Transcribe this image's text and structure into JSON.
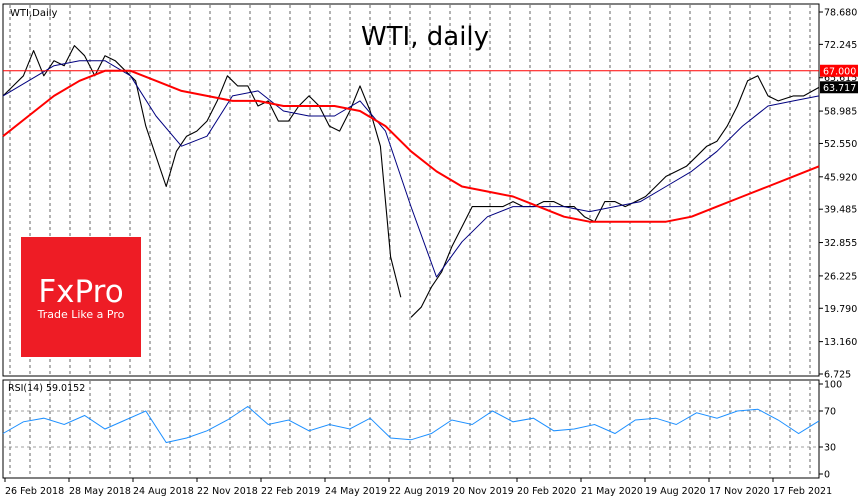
{
  "chart_data": [
    {
      "type": "line",
      "symbol_label": "WTI,Daily",
      "title": "WTI, daily",
      "y_ticks": [
        6.725,
        13.16,
        19.79,
        26.225,
        32.855,
        39.485,
        45.92,
        52.55,
        58.985,
        65.615,
        72.245,
        78.68
      ],
      "y_tick_labels": [
        "6.725",
        "13.160",
        "19.790",
        "26.225",
        "32.855",
        "39.485",
        "45.920",
        "52.550",
        "58.985",
        "65.615",
        "72.245",
        "78.680"
      ],
      "ylim": [
        6.725,
        78.68
      ],
      "x_tick_labels": [
        "26 Feb 2018",
        "28 May 2018",
        "24 Aug 2018",
        "22 Nov 2018",
        "22 Feb 2019",
        "24 May 2019",
        "22 Aug 2019",
        "20 Nov 2019",
        "20 Feb 2020",
        "21 May 2020",
        "19 Aug 2020",
        "17 Nov 2020",
        "17 Feb 2021"
      ],
      "grid": true,
      "price_level": {
        "value": 67.0,
        "label": "67.000",
        "color": "#ff0000"
      },
      "last_price": {
        "value": 63.717,
        "label": "63.717",
        "color": "#000000"
      },
      "series": [
        {
          "kind": "price",
          "color": "#000000",
          "x": [
            0,
            4,
            8,
            12,
            16,
            20,
            24,
            28,
            32,
            36,
            40,
            44,
            48,
            52,
            56,
            60,
            64,
            68,
            72,
            76,
            80,
            84,
            88,
            92,
            96,
            100,
            104,
            108,
            112,
            116,
            120,
            124,
            128,
            132,
            136,
            140,
            144,
            148,
            152,
            156
          ],
          "values": [
            62,
            64,
            66,
            71,
            66,
            69,
            68,
            72,
            70,
            66,
            70,
            69,
            67,
            65,
            56,
            50,
            44,
            51,
            54,
            55,
            57,
            61,
            66,
            64,
            64,
            60,
            61,
            57,
            57,
            60,
            62,
            60,
            56,
            55,
            59,
            64,
            59,
            52,
            30,
            22
          ]
        },
        {
          "kind": "price",
          "color": "#000000",
          "x": [
            160,
            164,
            168,
            172,
            176,
            180,
            184,
            188,
            192,
            196,
            200,
            204,
            208,
            212,
            216,
            220,
            224,
            228,
            232,
            236,
            240,
            244,
            248,
            252,
            256,
            260,
            264,
            268,
            272,
            276,
            280,
            284,
            288,
            292,
            296,
            300,
            304,
            310,
            314,
            320
          ],
          "values": [
            18,
            20,
            24,
            27,
            32,
            36,
            40,
            40,
            40,
            40,
            41,
            40,
            40,
            41,
            41,
            40,
            40,
            38,
            37,
            41,
            41,
            40,
            41,
            42,
            44,
            46,
            47,
            48,
            50,
            52,
            53,
            56,
            60,
            65,
            66,
            62,
            61,
            62,
            62,
            63.7
          ]
        },
        {
          "kind": "ma-fast",
          "color": "#00007f",
          "x": [
            0,
            10,
            20,
            30,
            40,
            50,
            60,
            70,
            80,
            90,
            100,
            110,
            120,
            130,
            140,
            150,
            160,
            170,
            180,
            190,
            200,
            210,
            220,
            230,
            240,
            250,
            260,
            270,
            280,
            290,
            300,
            310,
            320
          ],
          "values": [
            62,
            65,
            68,
            69,
            69,
            66,
            58,
            52,
            54,
            62,
            63,
            59,
            58,
            58,
            61,
            55,
            40,
            26,
            33,
            38,
            40,
            40,
            40,
            39,
            40,
            41,
            44,
            47,
            51,
            56,
            60,
            61,
            62
          ]
        },
        {
          "kind": "ma-slow",
          "color": "#ff0000",
          "x": [
            0,
            10,
            20,
            30,
            40,
            50,
            60,
            70,
            80,
            90,
            100,
            110,
            120,
            130,
            140,
            150,
            160,
            170,
            180,
            190,
            200,
            210,
            220,
            230,
            240,
            250,
            260,
            270,
            280,
            290,
            300,
            310,
            320
          ],
          "values": [
            54,
            58,
            62,
            65,
            67,
            67,
            65,
            63,
            62,
            61,
            61,
            60,
            60,
            60,
            59,
            56,
            51,
            47,
            44,
            43,
            42,
            40,
            38,
            37,
            37,
            37,
            37,
            38,
            40,
            42,
            44,
            46,
            48
          ]
        }
      ]
    },
    {
      "type": "line",
      "label": "RSI(14) 59.0152",
      "ylim": [
        0,
        100
      ],
      "y_ticks": [
        0,
        30,
        70,
        100
      ],
      "y_tick_labels": [
        "0",
        "30",
        "70",
        "100"
      ],
      "levels": [
        30,
        70
      ],
      "series": [
        {
          "color": "#1e90ff",
          "x": [
            0,
            8,
            16,
            24,
            32,
            40,
            48,
            56,
            64,
            72,
            80,
            88,
            96,
            104,
            112,
            120,
            128,
            136,
            144,
            152,
            160,
            168,
            176,
            184,
            192,
            200,
            208,
            216,
            224,
            232,
            240,
            248,
            256,
            264,
            272,
            280,
            288,
            296,
            304,
            312,
            320
          ],
          "values": [
            45,
            58,
            62,
            55,
            65,
            50,
            60,
            70,
            35,
            40,
            48,
            60,
            75,
            55,
            60,
            48,
            55,
            50,
            62,
            40,
            38,
            45,
            60,
            55,
            70,
            58,
            62,
            48,
            50,
            55,
            45,
            60,
            62,
            55,
            68,
            62,
            70,
            72,
            60,
            45,
            59
          ]
        }
      ]
    }
  ],
  "brand": {
    "logo_text": "FxPro",
    "tagline": "Trade Like a Pro",
    "color": "#ee1c25"
  }
}
